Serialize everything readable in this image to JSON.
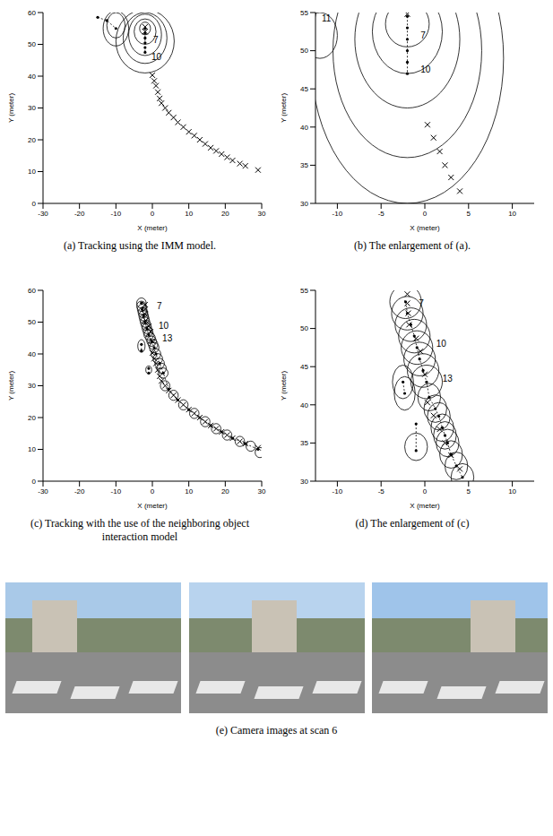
{
  "chart_data": [
    {
      "type": "scatter",
      "title": "(a) Tracking using the IMM model.",
      "x_label": "X (meter)",
      "y_label": "Y (meter)",
      "xlim": [
        -30,
        30
      ],
      "xticks": [
        -30,
        -20,
        -10,
        0,
        10,
        20,
        30
      ],
      "ylim": [
        0,
        60
      ],
      "yticks": [
        0,
        10,
        20,
        30,
        40,
        50,
        60
      ],
      "measurements": [
        {
          "x": 29,
          "y": 10.5
        },
        {
          "x": 25.5,
          "y": 11.8
        },
        {
          "x": 24,
          "y": 12.5
        },
        {
          "x": 22,
          "y": 13.5
        },
        {
          "x": 20.5,
          "y": 14.5
        },
        {
          "x": 19,
          "y": 15.5
        },
        {
          "x": 17.5,
          "y": 16.5
        },
        {
          "x": 16,
          "y": 17.5
        },
        {
          "x": 14.5,
          "y": 18.7
        },
        {
          "x": 13,
          "y": 20
        },
        {
          "x": 11.5,
          "y": 21.3
        },
        {
          "x": 10,
          "y": 22.5
        },
        {
          "x": 8.5,
          "y": 24
        },
        {
          "x": 7,
          "y": 25.5
        },
        {
          "x": 5.8,
          "y": 27
        },
        {
          "x": 4.5,
          "y": 28.5
        },
        {
          "x": 3.5,
          "y": 30
        },
        {
          "x": 2.5,
          "y": 31.5
        },
        {
          "x": 2,
          "y": 33
        },
        {
          "x": 1.5,
          "y": 35
        },
        {
          "x": 1,
          "y": 37
        },
        {
          "x": 0.5,
          "y": 38.5
        },
        {
          "x": 0,
          "y": 40.3
        },
        {
          "x": -2,
          "y": 55.5
        },
        {
          "x": -2,
          "y": 54
        }
      ],
      "tracks": [
        [
          {
            "x": -2,
            "y": 55
          },
          {
            "x": -2,
            "y": 53.5
          },
          {
            "x": -2,
            "y": 52
          },
          {
            "x": -2,
            "y": 50.5
          },
          {
            "x": -2,
            "y": 49
          },
          {
            "x": -2,
            "y": 47.5
          }
        ],
        [
          {
            "x": -15,
            "y": 58.5
          },
          {
            "x": -12.5,
            "y": 57.5
          },
          {
            "x": -10,
            "y": 55
          }
        ]
      ],
      "ellipses": [
        {
          "x": -2,
          "y": 55,
          "rx": 1.5,
          "ry": 2
        },
        {
          "x": -2,
          "y": 54,
          "rx": 3,
          "ry": 4
        },
        {
          "x": -2,
          "y": 53,
          "rx": 4.5,
          "ry": 6.5
        },
        {
          "x": -2,
          "y": 52,
          "rx": 6,
          "ry": 8
        },
        {
          "x": -2,
          "y": 51,
          "rx": 8,
          "ry": 10
        },
        {
          "x": -10,
          "y": 56,
          "rx": 2.5,
          "ry": 4
        },
        {
          "x": -10,
          "y": 55,
          "rx": 3.5,
          "ry": 5.5
        }
      ],
      "annotations": [
        {
          "x": -1,
          "y": 51.5,
          "text": "7"
        },
        {
          "x": -1.5,
          "y": 46,
          "text": "10"
        }
      ]
    },
    {
      "type": "scatter",
      "title": "(b) The enlargement of (a).",
      "x_label": "X (meter)",
      "y_label": "Y (meter)",
      "xlim": [
        -12.5,
        12.5
      ],
      "xticks": [
        -10,
        -5,
        0,
        5,
        10
      ],
      "ylim": [
        30,
        55
      ],
      "yticks": [
        30,
        35,
        40,
        45,
        50,
        55
      ],
      "measurements": [
        {
          "x": -2,
          "y": 54.8
        },
        {
          "x": 0.3,
          "y": 40.3
        },
        {
          "x": 1,
          "y": 38.6
        },
        {
          "x": 1.7,
          "y": 36.8
        },
        {
          "x": 2.3,
          "y": 35
        },
        {
          "x": 3,
          "y": 33.4
        },
        {
          "x": 4,
          "y": 31.6
        }
      ],
      "tracks": [
        [
          {
            "x": -2,
            "y": 54.5
          },
          {
            "x": -2,
            "y": 53
          },
          {
            "x": -2,
            "y": 51.5
          },
          {
            "x": -2,
            "y": 50
          },
          {
            "x": -2,
            "y": 48.5
          },
          {
            "x": -2,
            "y": 47
          }
        ]
      ],
      "ellipses": [
        {
          "x": -2,
          "y": 53.5,
          "rx": 2.5,
          "ry": 3
        },
        {
          "x": -2,
          "y": 52.5,
          "rx": 4,
          "ry": 5.5
        },
        {
          "x": -2,
          "y": 51.5,
          "rx": 6,
          "ry": 9
        },
        {
          "x": -2,
          "y": 50,
          "rx": 8.5,
          "ry": 14
        },
        {
          "x": -2,
          "y": 49,
          "rx": 11,
          "ry": 19
        },
        {
          "x": -12,
          "y": 52,
          "rx": 2,
          "ry": 3
        }
      ],
      "annotations": [
        {
          "x": -1,
          "y": 52,
          "text": "7"
        },
        {
          "x": -1,
          "y": 47.5,
          "text": "10"
        },
        {
          "x": -12.3,
          "y": 54.3,
          "text": "11"
        }
      ]
    },
    {
      "type": "scatter",
      "title": "(c) Tracking with the use of the neighboring object interaction model",
      "x_label": "X (meter)",
      "y_label": "Y (meter)",
      "xlim": [
        -30,
        30
      ],
      "xticks": [
        -30,
        -20,
        -10,
        0,
        10,
        20,
        30
      ],
      "ylim": [
        0,
        60
      ],
      "yticks": [
        0,
        10,
        20,
        30,
        40,
        50,
        60
      ],
      "measurements": [
        {
          "x": 29,
          "y": 10.5
        },
        {
          "x": 25.5,
          "y": 11.8
        },
        {
          "x": 24,
          "y": 12.5
        },
        {
          "x": 22,
          "y": 13.5
        },
        {
          "x": 20.5,
          "y": 14.5
        },
        {
          "x": 19,
          "y": 15.5
        },
        {
          "x": 17.5,
          "y": 16.5
        },
        {
          "x": 16,
          "y": 17.5
        },
        {
          "x": 14.5,
          "y": 18.7
        },
        {
          "x": 13,
          "y": 20
        },
        {
          "x": 11.5,
          "y": 21.3
        },
        {
          "x": 10,
          "y": 22.5
        },
        {
          "x": 8.5,
          "y": 24
        },
        {
          "x": 7,
          "y": 25.5
        },
        {
          "x": 5.8,
          "y": 27
        },
        {
          "x": 4.5,
          "y": 28.5
        },
        {
          "x": 3.5,
          "y": 30
        },
        {
          "x": 2.5,
          "y": 31.5
        },
        {
          "x": 2,
          "y": 33
        },
        {
          "x": 1.5,
          "y": 35
        },
        {
          "x": 1,
          "y": 37
        },
        {
          "x": 0.5,
          "y": 38.5
        },
        {
          "x": 0,
          "y": 40.3
        },
        {
          "x": -2,
          "y": 55.5
        },
        {
          "x": -2,
          "y": 54
        },
        {
          "x": -2,
          "y": 52.5
        },
        {
          "x": -1.8,
          "y": 50.5
        },
        {
          "x": -1,
          "y": 48.7
        },
        {
          "x": -0.5,
          "y": 47
        },
        {
          "x": 0,
          "y": 44
        }
      ],
      "tracks": [
        [
          {
            "x": -3,
            "y": 56
          },
          {
            "x": -2.8,
            "y": 54
          },
          {
            "x": -2.4,
            "y": 52
          },
          {
            "x": -2,
            "y": 50
          },
          {
            "x": -1.5,
            "y": 48
          },
          {
            "x": -1,
            "y": 46
          },
          {
            "x": -0.2,
            "y": 44
          },
          {
            "x": 0.5,
            "y": 42
          },
          {
            "x": 1,
            "y": 40
          },
          {
            "x": 2,
            "y": 37
          },
          {
            "x": 3,
            "y": 34
          },
          {
            "x": 4.5,
            "y": 29
          },
          {
            "x": 7,
            "y": 25.5
          },
          {
            "x": 10,
            "y": 22.5
          },
          {
            "x": 13,
            "y": 20
          },
          {
            "x": 16,
            "y": 17.5
          },
          {
            "x": 19,
            "y": 15.5
          },
          {
            "x": 22,
            "y": 13.5
          },
          {
            "x": 25.5,
            "y": 11.8
          },
          {
            "x": 29,
            "y": 10
          }
        ],
        [
          {
            "x": -3,
            "y": 43
          },
          {
            "x": -3,
            "y": 41
          }
        ],
        [
          {
            "x": -1,
            "y": 35.5
          },
          {
            "x": -1,
            "y": 34
          }
        ]
      ],
      "ellipses": [
        {
          "x": -3,
          "y": 56,
          "rx": 1.3,
          "ry": 1.6
        },
        {
          "x": -3,
          "y": 55,
          "rx": 1.3,
          "ry": 1.6
        },
        {
          "x": -2.8,
          "y": 54,
          "rx": 1.3,
          "ry": 1.6
        },
        {
          "x": -2.6,
          "y": 53,
          "rx": 1.3,
          "ry": 1.6
        },
        {
          "x": -2.4,
          "y": 52,
          "rx": 1.3,
          "ry": 1.6
        },
        {
          "x": -2.2,
          "y": 51,
          "rx": 1.3,
          "ry": 1.6
        },
        {
          "x": -2,
          "y": 50,
          "rx": 1.3,
          "ry": 1.6
        },
        {
          "x": -1.7,
          "y": 49,
          "rx": 1.3,
          "ry": 1.6
        },
        {
          "x": -1.5,
          "y": 48,
          "rx": 1.3,
          "ry": 1.6
        },
        {
          "x": -1.2,
          "y": 47,
          "rx": 1.3,
          "ry": 1.6
        },
        {
          "x": -1,
          "y": 46,
          "rx": 1.3,
          "ry": 1.6
        },
        {
          "x": -0.5,
          "y": 45,
          "rx": 1.3,
          "ry": 1.6
        },
        {
          "x": -0.2,
          "y": 44,
          "rx": 1.3,
          "ry": 1.6
        },
        {
          "x": 0.2,
          "y": 43,
          "rx": 1.3,
          "ry": 1.6
        },
        {
          "x": 0.5,
          "y": 42,
          "rx": 1.3,
          "ry": 1.6
        },
        {
          "x": 1,
          "y": 40,
          "rx": 1.3,
          "ry": 1.6
        },
        {
          "x": 1.5,
          "y": 38.5,
          "rx": 1.3,
          "ry": 1.6
        },
        {
          "x": 2,
          "y": 37,
          "rx": 1.3,
          "ry": 1.6
        },
        {
          "x": 2.5,
          "y": 35.5,
          "rx": 1.3,
          "ry": 1.6
        },
        {
          "x": 3,
          "y": 34,
          "rx": 1.3,
          "ry": 1.6
        },
        {
          "x": 3.5,
          "y": 30,
          "rx": 1.3,
          "ry": 1.6
        },
        {
          "x": 5.8,
          "y": 27,
          "rx": 1.3,
          "ry": 1.6
        },
        {
          "x": 8.5,
          "y": 24,
          "rx": 1.3,
          "ry": 1.6
        },
        {
          "x": 11.5,
          "y": 21.3,
          "rx": 1.3,
          "ry": 1.6
        },
        {
          "x": 14.5,
          "y": 18.7,
          "rx": 1.3,
          "ry": 1.6
        },
        {
          "x": 17.5,
          "y": 16.5,
          "rx": 1.3,
          "ry": 1.6
        },
        {
          "x": 20.5,
          "y": 14.5,
          "rx": 1.3,
          "ry": 1.6
        },
        {
          "x": 24,
          "y": 12.5,
          "rx": 1.3,
          "ry": 1.6
        },
        {
          "x": 27,
          "y": 11,
          "rx": 1.3,
          "ry": 1.6
        },
        {
          "x": 29.5,
          "y": 9,
          "rx": 1.3,
          "ry": 1.6
        },
        {
          "x": -3,
          "y": 42.5,
          "rx": 1,
          "ry": 2
        },
        {
          "x": -1,
          "y": 35,
          "rx": 0.8,
          "ry": 1.2
        }
      ],
      "annotations": [
        {
          "x": 0,
          "y": 55,
          "text": "7"
        },
        {
          "x": 0.5,
          "y": 49,
          "text": "10"
        },
        {
          "x": 1.5,
          "y": 45,
          "text": "13"
        }
      ]
    },
    {
      "type": "scatter",
      "title": "(d) The enlargement of (c)",
      "x_label": "X (meter)",
      "y_label": "Y (meter)",
      "xlim": [
        -12.5,
        12.5
      ],
      "xticks": [
        -10,
        -5,
        0,
        5,
        10
      ],
      "ylim": [
        30,
        55
      ],
      "yticks": [
        30,
        35,
        40,
        45,
        50,
        55
      ],
      "measurements": [
        {
          "x": -2,
          "y": 54.5
        },
        {
          "x": -2,
          "y": 53.3
        },
        {
          "x": -1.9,
          "y": 52
        },
        {
          "x": -1.8,
          "y": 50.5
        },
        {
          "x": -1,
          "y": 48.7
        },
        {
          "x": -0.5,
          "y": 47
        },
        {
          "x": 0,
          "y": 44
        },
        {
          "x": 0.3,
          "y": 40.3
        },
        {
          "x": 1,
          "y": 38.6
        },
        {
          "x": 1.7,
          "y": 36.8
        },
        {
          "x": 2.3,
          "y": 35
        },
        {
          "x": 3,
          "y": 33.4
        },
        {
          "x": 4,
          "y": 31.6
        }
      ],
      "tracks": [
        [
          {
            "x": -2.2,
            "y": 53.5
          },
          {
            "x": -2,
            "y": 52
          },
          {
            "x": -1.6,
            "y": 50.5
          },
          {
            "x": -1.2,
            "y": 49
          },
          {
            "x": -0.9,
            "y": 47.5
          },
          {
            "x": -0.6,
            "y": 46
          },
          {
            "x": -0.2,
            "y": 44.5
          },
          {
            "x": 0.2,
            "y": 43
          },
          {
            "x": 0.5,
            "y": 41
          },
          {
            "x": 1.2,
            "y": 39.5
          },
          {
            "x": 1.6,
            "y": 38.5
          },
          {
            "x": 2,
            "y": 37
          },
          {
            "x": 2.3,
            "y": 36
          },
          {
            "x": 2.6,
            "y": 35
          },
          {
            "x": 3,
            "y": 33.5
          },
          {
            "x": 3.6,
            "y": 32
          },
          {
            "x": 4.3,
            "y": 30.5
          }
        ],
        [
          {
            "x": -2.5,
            "y": 43
          },
          {
            "x": -2.3,
            "y": 41.5
          }
        ],
        [
          {
            "x": -1,
            "y": 37.5
          },
          {
            "x": -1,
            "y": 34
          }
        ]
      ],
      "ellipses": [
        {
          "x": -2.2,
          "y": 53.5,
          "rx": 1.8,
          "ry": 2.2
        },
        {
          "x": -2,
          "y": 52,
          "rx": 1.8,
          "ry": 2.2
        },
        {
          "x": -1.6,
          "y": 50.5,
          "rx": 1.8,
          "ry": 2.2
        },
        {
          "x": -1.2,
          "y": 49,
          "rx": 1.8,
          "ry": 2.2
        },
        {
          "x": -0.9,
          "y": 47.5,
          "rx": 1.8,
          "ry": 2.2
        },
        {
          "x": -0.6,
          "y": 46,
          "rx": 1.8,
          "ry": 2.2
        },
        {
          "x": -0.2,
          "y": 44.5,
          "rx": 1.8,
          "ry": 2.2
        },
        {
          "x": 0.2,
          "y": 43,
          "rx": 1.8,
          "ry": 2.2
        },
        {
          "x": -2.5,
          "y": 43,
          "rx": 1.2,
          "ry": 2.2
        },
        {
          "x": -2.3,
          "y": 41.5,
          "rx": 1.2,
          "ry": 2.2
        },
        {
          "x": -1,
          "y": 34.5,
          "rx": 1.3,
          "ry": 1.8
        },
        {
          "x": 0.5,
          "y": 41,
          "rx": 1.3,
          "ry": 1.8
        },
        {
          "x": 1.2,
          "y": 39.5,
          "rx": 1.3,
          "ry": 1.8
        },
        {
          "x": 1.6,
          "y": 38.5,
          "rx": 1.3,
          "ry": 1.8
        },
        {
          "x": 2,
          "y": 37,
          "rx": 1.3,
          "ry": 1.8
        },
        {
          "x": 2.3,
          "y": 36,
          "rx": 1.3,
          "ry": 1.8
        },
        {
          "x": 2.6,
          "y": 35,
          "rx": 1.3,
          "ry": 1.8
        },
        {
          "x": 3,
          "y": 33.5,
          "rx": 1.3,
          "ry": 1.8
        },
        {
          "x": 3.6,
          "y": 32,
          "rx": 1.3,
          "ry": 1.8
        },
        {
          "x": 4.3,
          "y": 30.5,
          "rx": 1.3,
          "ry": 1.8
        }
      ],
      "annotations": [
        {
          "x": -1.2,
          "y": 53.3,
          "text": "7"
        },
        {
          "x": 0.8,
          "y": 48,
          "text": "10"
        },
        {
          "x": 1.5,
          "y": 43.5,
          "text": "13"
        }
      ]
    }
  ],
  "camera_images": {
    "caption": "(e) Camera images at scan 6"
  }
}
